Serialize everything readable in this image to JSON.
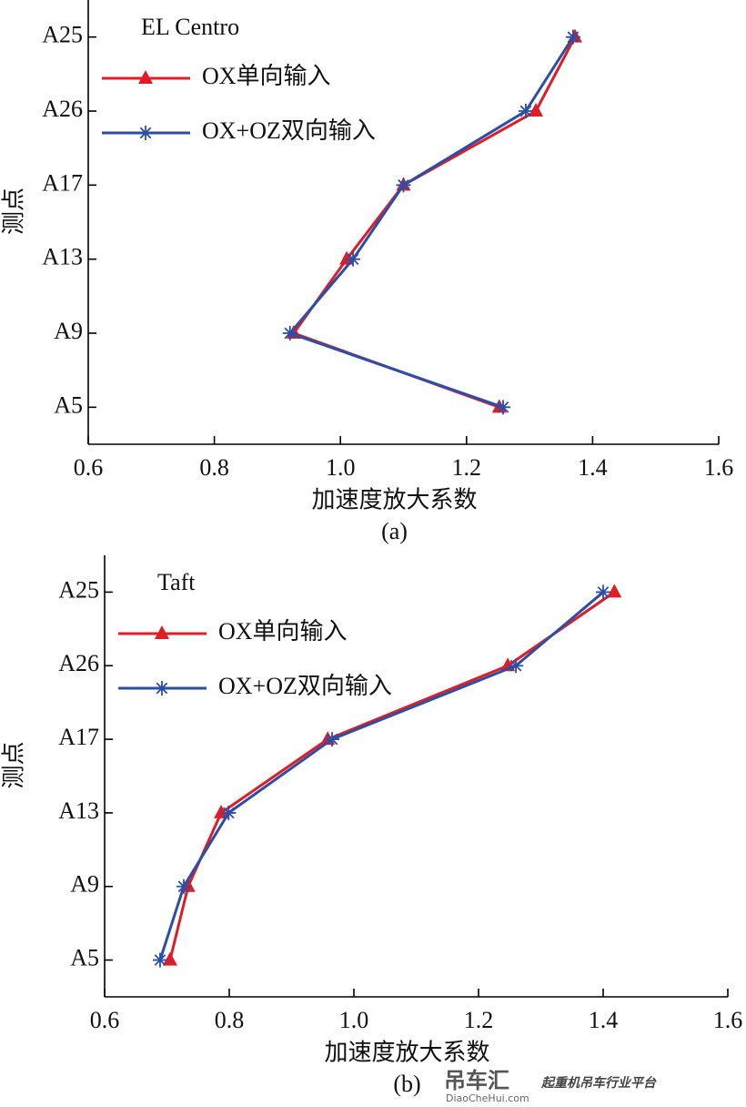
{
  "chart_data": [
    {
      "type": "line",
      "annotation": "EL Centro",
      "x_label": "加速度放大系数",
      "y_label": "测点",
      "caption": "(a)",
      "categories": [
        "A5",
        "A9",
        "A13",
        "A17",
        "A26",
        "A25"
      ],
      "series": [
        {
          "name": "OX单向输入",
          "color": "#e01c24",
          "marker": "triangle",
          "values": [
            1.252,
            0.926,
            1.01,
            1.1,
            1.31,
            1.372
          ]
        },
        {
          "name": "OX+OZ双向输入",
          "color": "#2b4ea8",
          "marker": "asterisk",
          "values": [
            1.258,
            0.92,
            1.02,
            1.1,
            1.294,
            1.369
          ]
        }
      ],
      "xlim": [
        0.6,
        1.6
      ],
      "xticks": [
        0.6,
        0.8,
        {
          "value": 1,
          "label": "1.0"
        },
        1.2,
        1.4,
        1.6
      ],
      "legend": "upper left"
    },
    {
      "type": "line",
      "annotation": "Taft",
      "x_label": "加速度放大系数",
      "y_label": "测点",
      "caption": "(b)",
      "categories": [
        "A5",
        "A9",
        "A13",
        "A17",
        "A26",
        "A25"
      ],
      "series": [
        {
          "name": "OX单向输入",
          "color": "#e01c24",
          "marker": "triangle",
          "values": [
            0.705,
            0.734,
            0.787,
            0.958,
            1.247,
            1.418
          ]
        },
        {
          "name": "OX+OZ双向输入",
          "color": "#2b4ea8",
          "marker": "asterisk",
          "values": [
            0.689,
            0.727,
            0.799,
            0.965,
            1.26,
            1.4
          ]
        }
      ],
      "xlim": [
        0.6,
        1.6
      ],
      "xticks": [
        0.6,
        0.8,
        {
          "value": 1,
          "label": "1.0"
        },
        1.2,
        1.4,
        1.6
      ],
      "legend": "upper left"
    }
  ],
  "watermark": {
    "brand": "吊车汇",
    "site": "DiaoCheHui.com",
    "slogan": "起重机吊车行业平台"
  }
}
